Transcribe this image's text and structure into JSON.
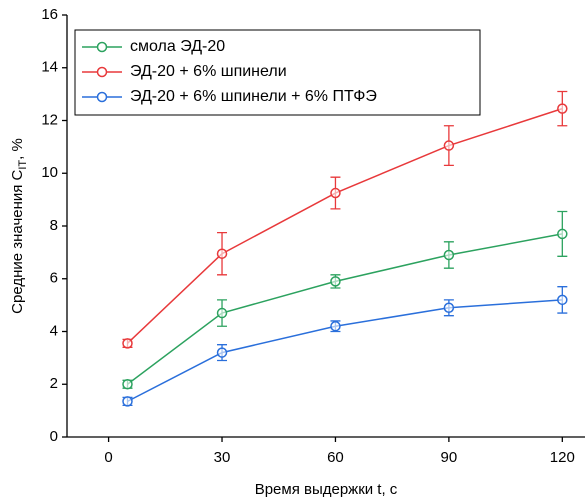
{
  "chart_data": {
    "type": "line",
    "x_label": "Время выдержки t, c",
    "y_label": {
      "text": "Средние значения C",
      "subscript": "IT",
      "tail": ", %"
    },
    "x": [
      5,
      30,
      60,
      90,
      120
    ],
    "series": [
      {
        "name": "смола ЭД-20",
        "color": "#2ca25f",
        "values": [
          2.0,
          4.7,
          5.9,
          6.9,
          7.7
        ],
        "errors": [
          0.15,
          0.5,
          0.25,
          0.5,
          0.85
        ]
      },
      {
        "name": "ЭД-20 + 6% шпинели",
        "color": "#e8393b",
        "values": [
          3.55,
          6.95,
          9.25,
          11.05,
          12.45
        ],
        "errors": [
          0.15,
          0.8,
          0.6,
          0.75,
          0.65
        ]
      },
      {
        "name": "ЭД-20 + 6% шпинели + 6% ПТФЭ",
        "color": "#2a6fdb",
        "values": [
          1.35,
          3.2,
          4.2,
          4.9,
          5.2
        ],
        "errors": [
          0.15,
          0.3,
          0.2,
          0.3,
          0.5
        ]
      }
    ],
    "xlim": [
      -11,
      126
    ],
    "xticks": [
      0,
      30,
      60,
      90,
      120
    ],
    "ylim": [
      0,
      16
    ],
    "yticks": [
      0,
      2,
      4,
      6,
      8,
      10,
      12,
      14,
      16
    ],
    "grid": false,
    "legend": "top-left"
  }
}
